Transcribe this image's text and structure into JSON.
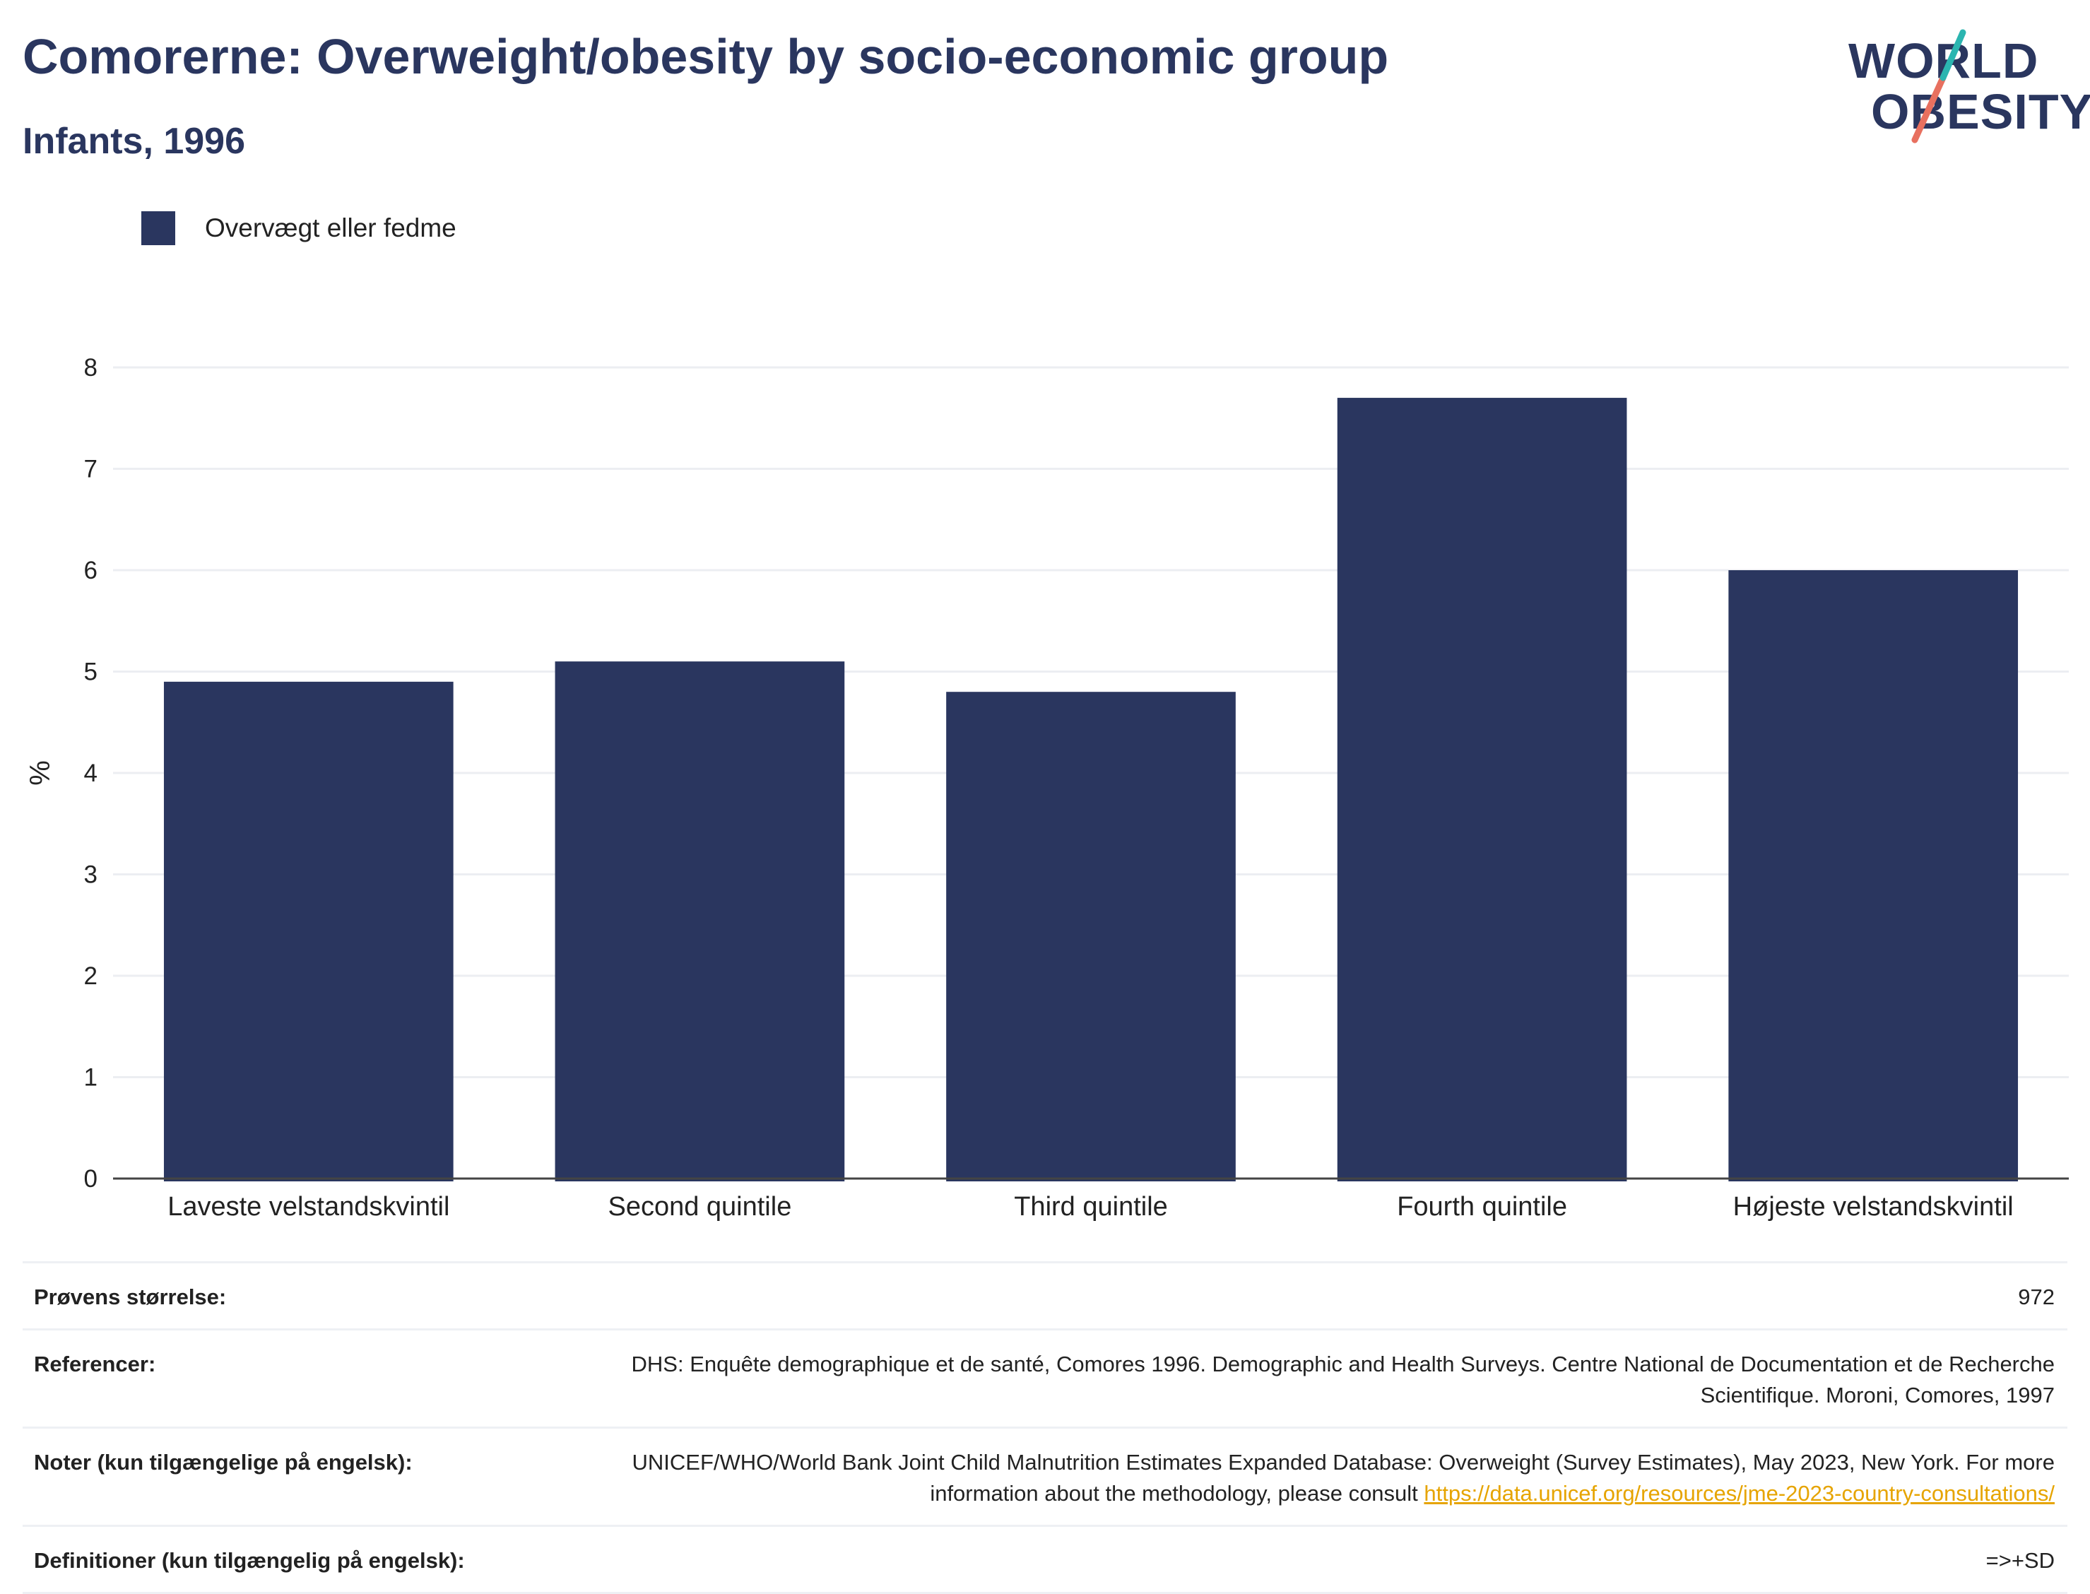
{
  "title": "Comorerne: Overweight/obesity by socio-economic group",
  "subtitle": "Infants, 1996",
  "logo": {
    "line1": "WORLD",
    "line2": "OBESITY"
  },
  "legend": {
    "label": "Overvægt eller fedme"
  },
  "colors": {
    "bar": "#2a365f",
    "grid": "#eceef2",
    "axis": "#444444",
    "link": "#e6a400",
    "logo_teal": "#2bb5b0",
    "logo_coral": "#e8705f"
  },
  "chart_data": {
    "type": "bar",
    "categories": [
      "Laveste velstandskvintil",
      "Second quintile",
      "Third quintile",
      "Fourth quintile",
      "Højeste velstandskvintil"
    ],
    "series": [
      {
        "name": "Overvægt eller fedme",
        "values": [
          4.9,
          5.1,
          4.8,
          7.7,
          6.0
        ]
      }
    ],
    "ylabel": "%",
    "ylim": [
      0,
      8
    ],
    "yticks": [
      "0",
      "1",
      "2",
      "3",
      "4",
      "5",
      "6",
      "7",
      "8"
    ],
    "grid": true,
    "legend_position": "top-left"
  },
  "footer": {
    "sample_label": "Prøvens størrelse:",
    "sample_value": "972",
    "ref_label": "Referencer:",
    "ref_value": "DHS: Enquête demographique et de santé, Comores 1996. Demographic and Health Surveys. Centre National de Documentation et de Recherche Scientifique. Moroni, Comores, 1997",
    "notes_label": "Noter (kun tilgængelige på engelsk):",
    "notes_value": "UNICEF/WHO/World Bank Joint Child Malnutrition Estimates Expanded Database: Overweight (Survey Estimates), May 2023, New York. For more information about the methodology, please consult",
    "notes_link": "https://data.unicef.org/resources/jme-2023-country-consultations/",
    "def_label": "Definitioner (kun tilgængelig på engelsk):",
    "def_value": "=>+SD"
  }
}
